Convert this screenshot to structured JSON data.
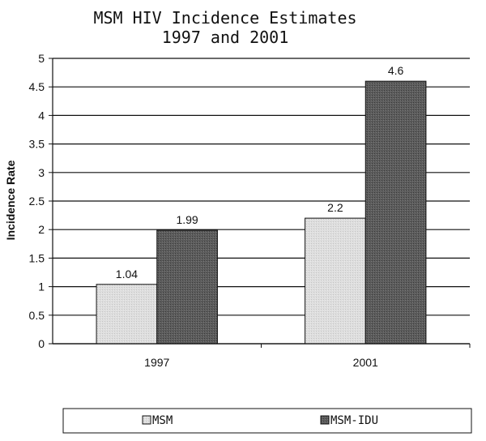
{
  "chart_data": {
    "type": "bar",
    "title": [
      "MSM HIV Incidence Estimates",
      "1997 and  2001"
    ],
    "ylabel": "Incidence Rate",
    "xlabel": "",
    "categories": [
      "1997",
      "2001"
    ],
    "series": [
      {
        "name": "MSM",
        "values": [
          1.04,
          2.2
        ],
        "labels": [
          "1.04",
          "2.2"
        ],
        "color": "#d9d9d9"
      },
      {
        "name": "MSM-IDU",
        "values": [
          1.99,
          4.6
        ],
        "labels": [
          "1.99",
          "4.6"
        ],
        "color": "#5a5a5a"
      }
    ],
    "ylim": [
      0,
      5
    ],
    "yticks": [
      "0",
      "0.5",
      "1",
      "1.5",
      "2",
      "2.5",
      "3",
      "3.5",
      "4",
      "4.5",
      "5"
    ],
    "grid": true,
    "legend": "bottom"
  }
}
